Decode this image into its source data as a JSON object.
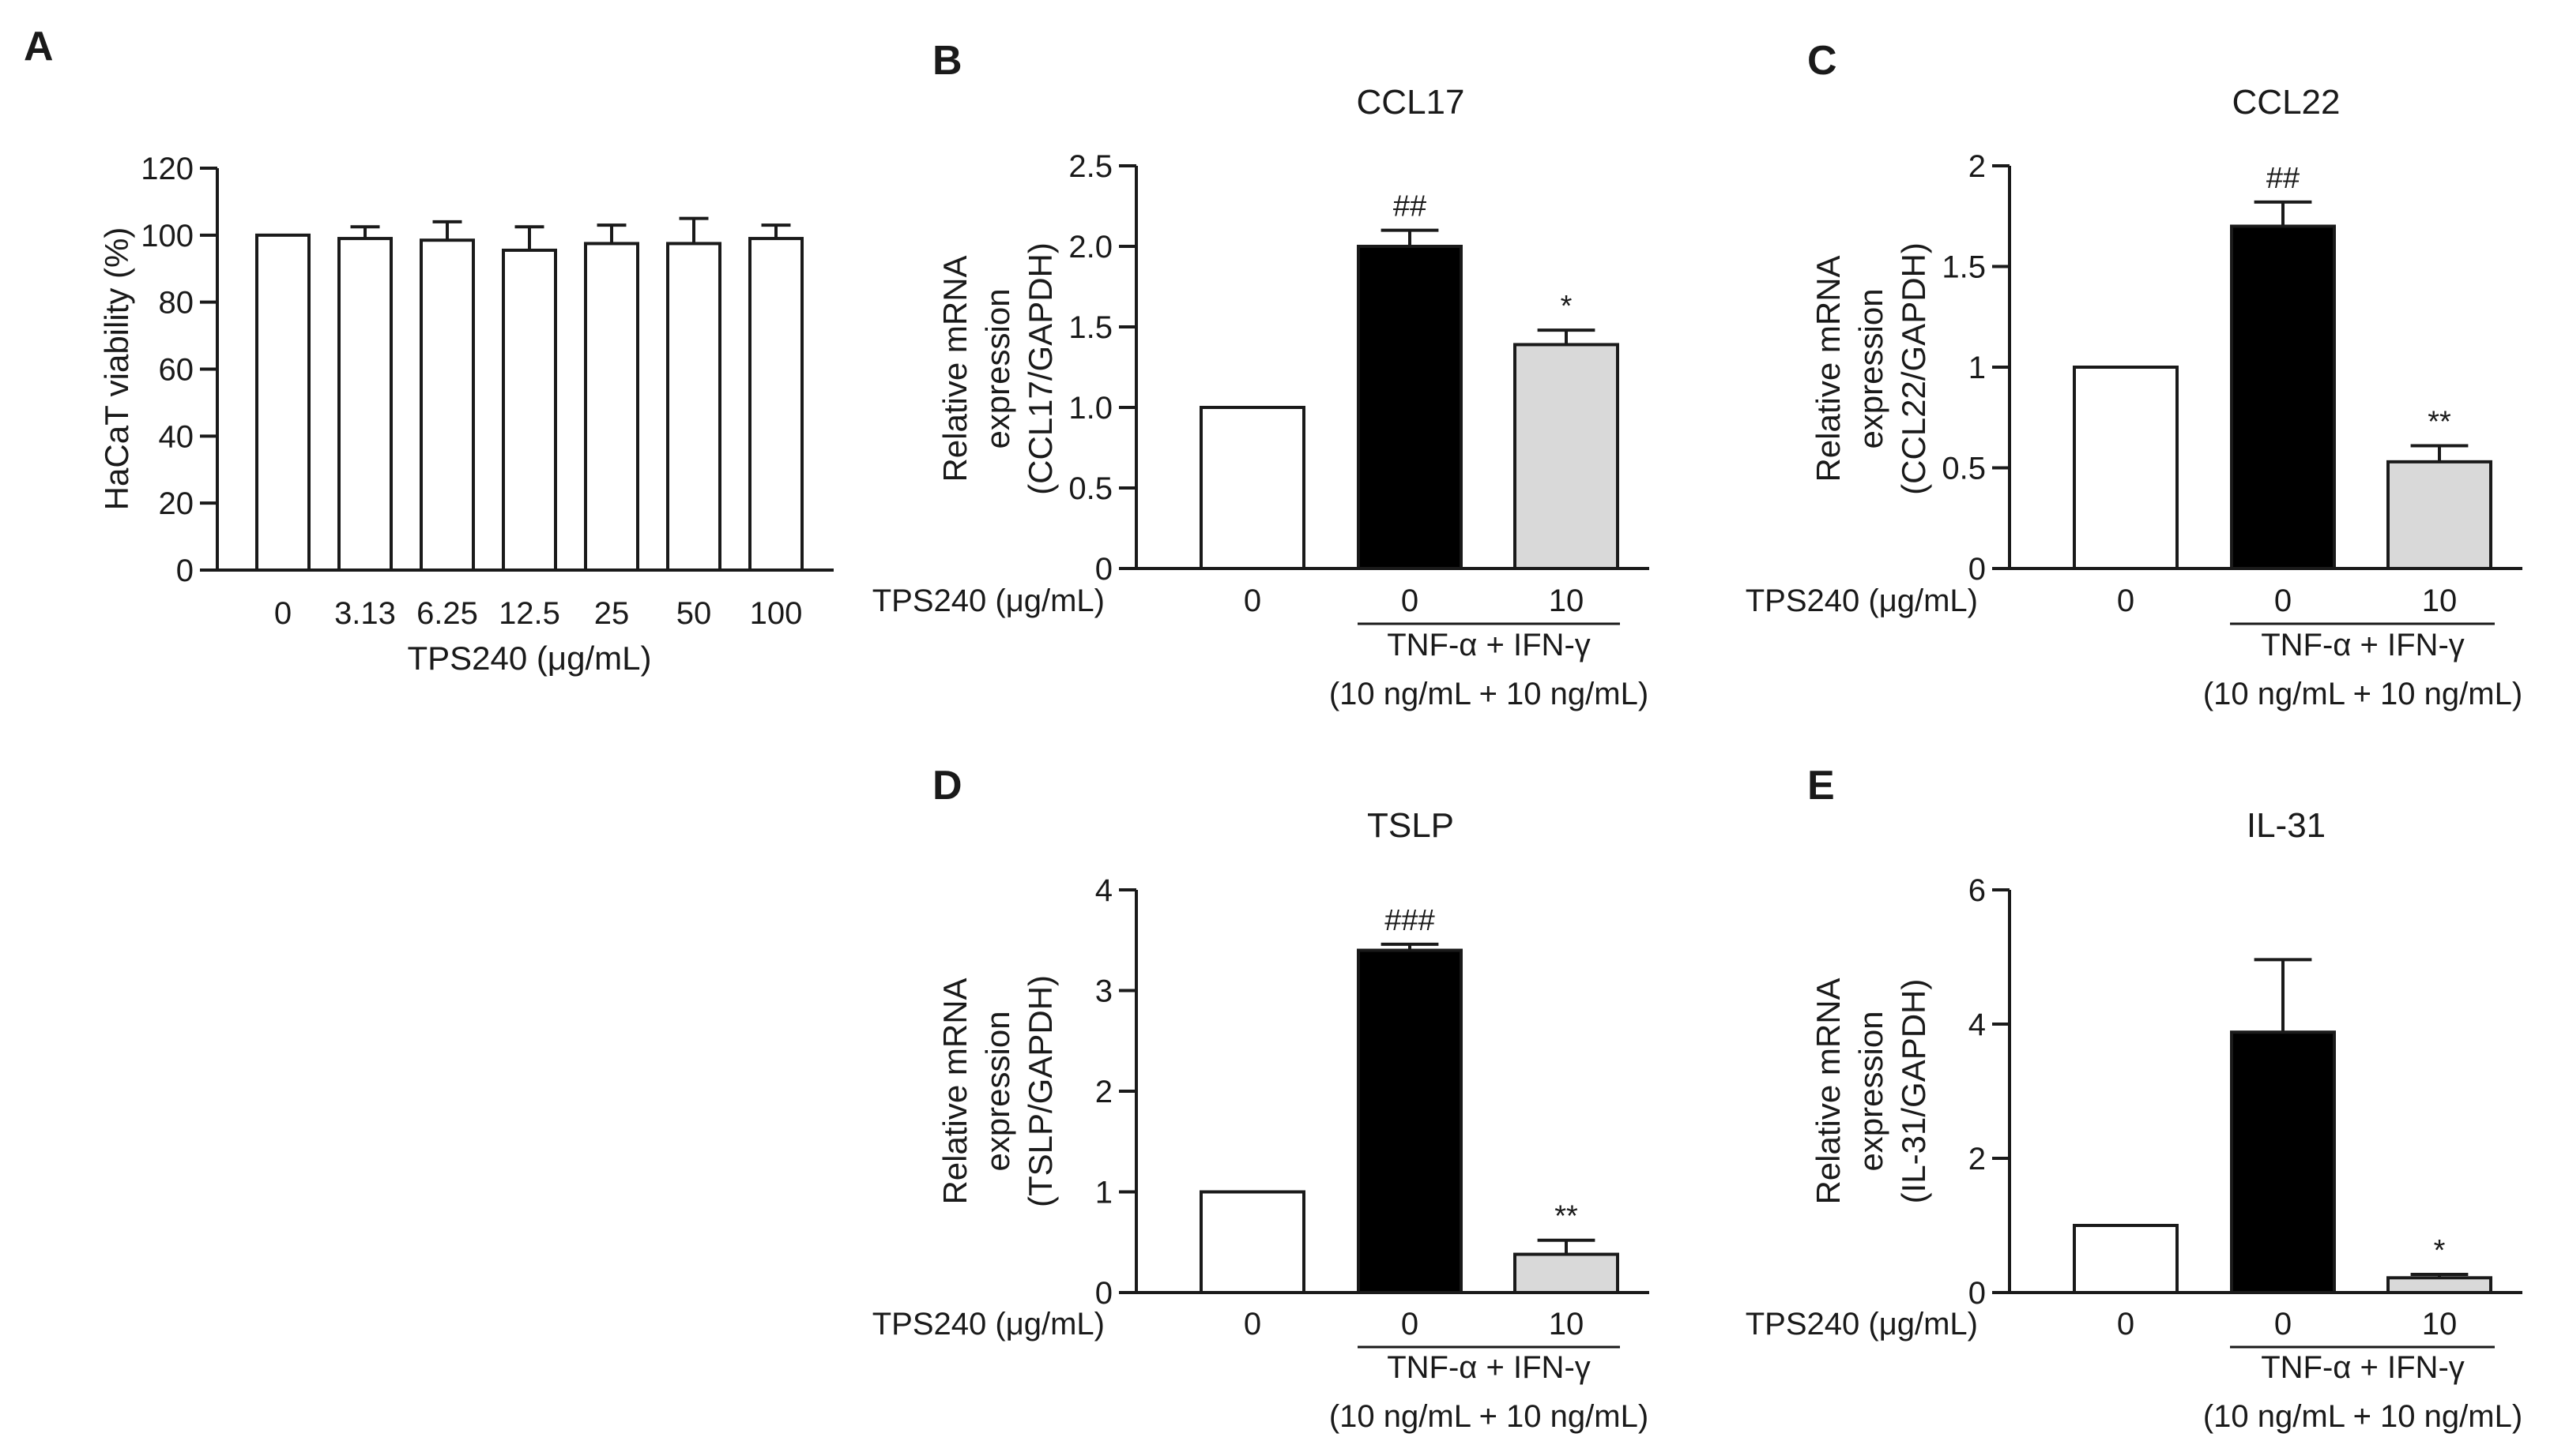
{
  "chart_data": [
    {
      "panel": "A",
      "type": "bar",
      "title": "",
      "ylabel": "HaCaT viability (%)",
      "xlabel": "TPS240 (μg/mL)",
      "categories": [
        "0",
        "3.13",
        "6.25",
        "12.5",
        "25",
        "50",
        "100"
      ],
      "values": [
        100,
        99,
        98.5,
        95.5,
        97.5,
        97.5,
        99
      ],
      "errors": [
        0,
        3.5,
        5.5,
        7,
        5.5,
        7.5,
        4
      ],
      "fills": [
        "#ffffff",
        "#ffffff",
        "#ffffff",
        "#ffffff",
        "#ffffff",
        "#ffffff",
        "#ffffff"
      ],
      "significance": [
        "",
        "",
        "",
        "",
        "",
        "",
        ""
      ],
      "ylim": [
        0,
        120
      ],
      "yticks": [
        "0",
        "20",
        "40",
        "60",
        "80",
        "100",
        "120"
      ]
    },
    {
      "panel": "B",
      "type": "bar",
      "title": "CCL17",
      "ylabel_lines": [
        "Relative mRNA",
        "expression",
        "(CCL17/GAPDH)"
      ],
      "row_label": "TPS240 (μg/mL)",
      "categories": [
        "0",
        "0",
        "10"
      ],
      "values": [
        1.0,
        2.0,
        1.39
      ],
      "errors": [
        0,
        0.1,
        0.09
      ],
      "fills": [
        "#ffffff",
        "#000000",
        "#d9d9d9"
      ],
      "significance": [
        "",
        "##",
        "*"
      ],
      "treatment_line1": "TNF-α + IFN-γ",
      "treatment_line2": "(10 ng/mL + 10 ng/mL)",
      "ylim": [
        0,
        2.5
      ],
      "yticks": [
        "0",
        "0.5",
        "1.0",
        "1.5",
        "2.0",
        "2.5"
      ]
    },
    {
      "panel": "C",
      "type": "bar",
      "title": "CCL22",
      "ylabel_lines": [
        "Relative mRNA",
        "expression",
        "(CCL22/GAPDH)"
      ],
      "row_label": "TPS240 (μg/mL)",
      "categories": [
        "0",
        "0",
        "10"
      ],
      "values": [
        1.0,
        1.7,
        0.53
      ],
      "errors": [
        0,
        0.12,
        0.08
      ],
      "fills": [
        "#ffffff",
        "#000000",
        "#d9d9d9"
      ],
      "significance": [
        "",
        "##",
        "**"
      ],
      "treatment_line1": "TNF-α + IFN-γ",
      "treatment_line2": "(10 ng/mL + 10 ng/mL)",
      "ylim": [
        0,
        2
      ],
      "yticks": [
        "0",
        "0.5",
        "1",
        "1.5",
        "2"
      ]
    },
    {
      "panel": "D",
      "type": "bar",
      "title": "TSLP",
      "ylabel_lines": [
        "Relative mRNA",
        "expression",
        "(TSLP/GAPDH)"
      ],
      "row_label": "TPS240 (μg/mL)",
      "categories": [
        "0",
        "0",
        "10"
      ],
      "values": [
        1.0,
        3.4,
        0.38
      ],
      "errors": [
        0,
        0.06,
        0.14
      ],
      "fills": [
        "#ffffff",
        "#000000",
        "#d9d9d9"
      ],
      "significance": [
        "",
        "###",
        "**"
      ],
      "treatment_line1": "TNF-α + IFN-γ",
      "treatment_line2": "(10 ng/mL + 10 ng/mL)",
      "ylim": [
        0,
        4
      ],
      "yticks": [
        "0",
        "1",
        "2",
        "3",
        "4"
      ]
    },
    {
      "panel": "E",
      "type": "bar",
      "title": "IL-31",
      "ylabel_lines": [
        "Relative mRNA",
        "expression",
        "(IL-31/GAPDH)"
      ],
      "row_label": "TPS240 (μg/mL)",
      "categories": [
        "0",
        "0",
        "10"
      ],
      "values": [
        1.0,
        3.88,
        0.22
      ],
      "errors": [
        0,
        1.08,
        0.05
      ],
      "fills": [
        "#ffffff",
        "#000000",
        "#d9d9d9"
      ],
      "significance": [
        "",
        "",
        "*"
      ],
      "treatment_line1": "TNF-α + IFN-γ",
      "treatment_line2": "(10 ng/mL + 10 ng/mL)",
      "ylim": [
        0,
        6
      ],
      "yticks": [
        "0",
        "2",
        "4",
        "6"
      ]
    }
  ]
}
